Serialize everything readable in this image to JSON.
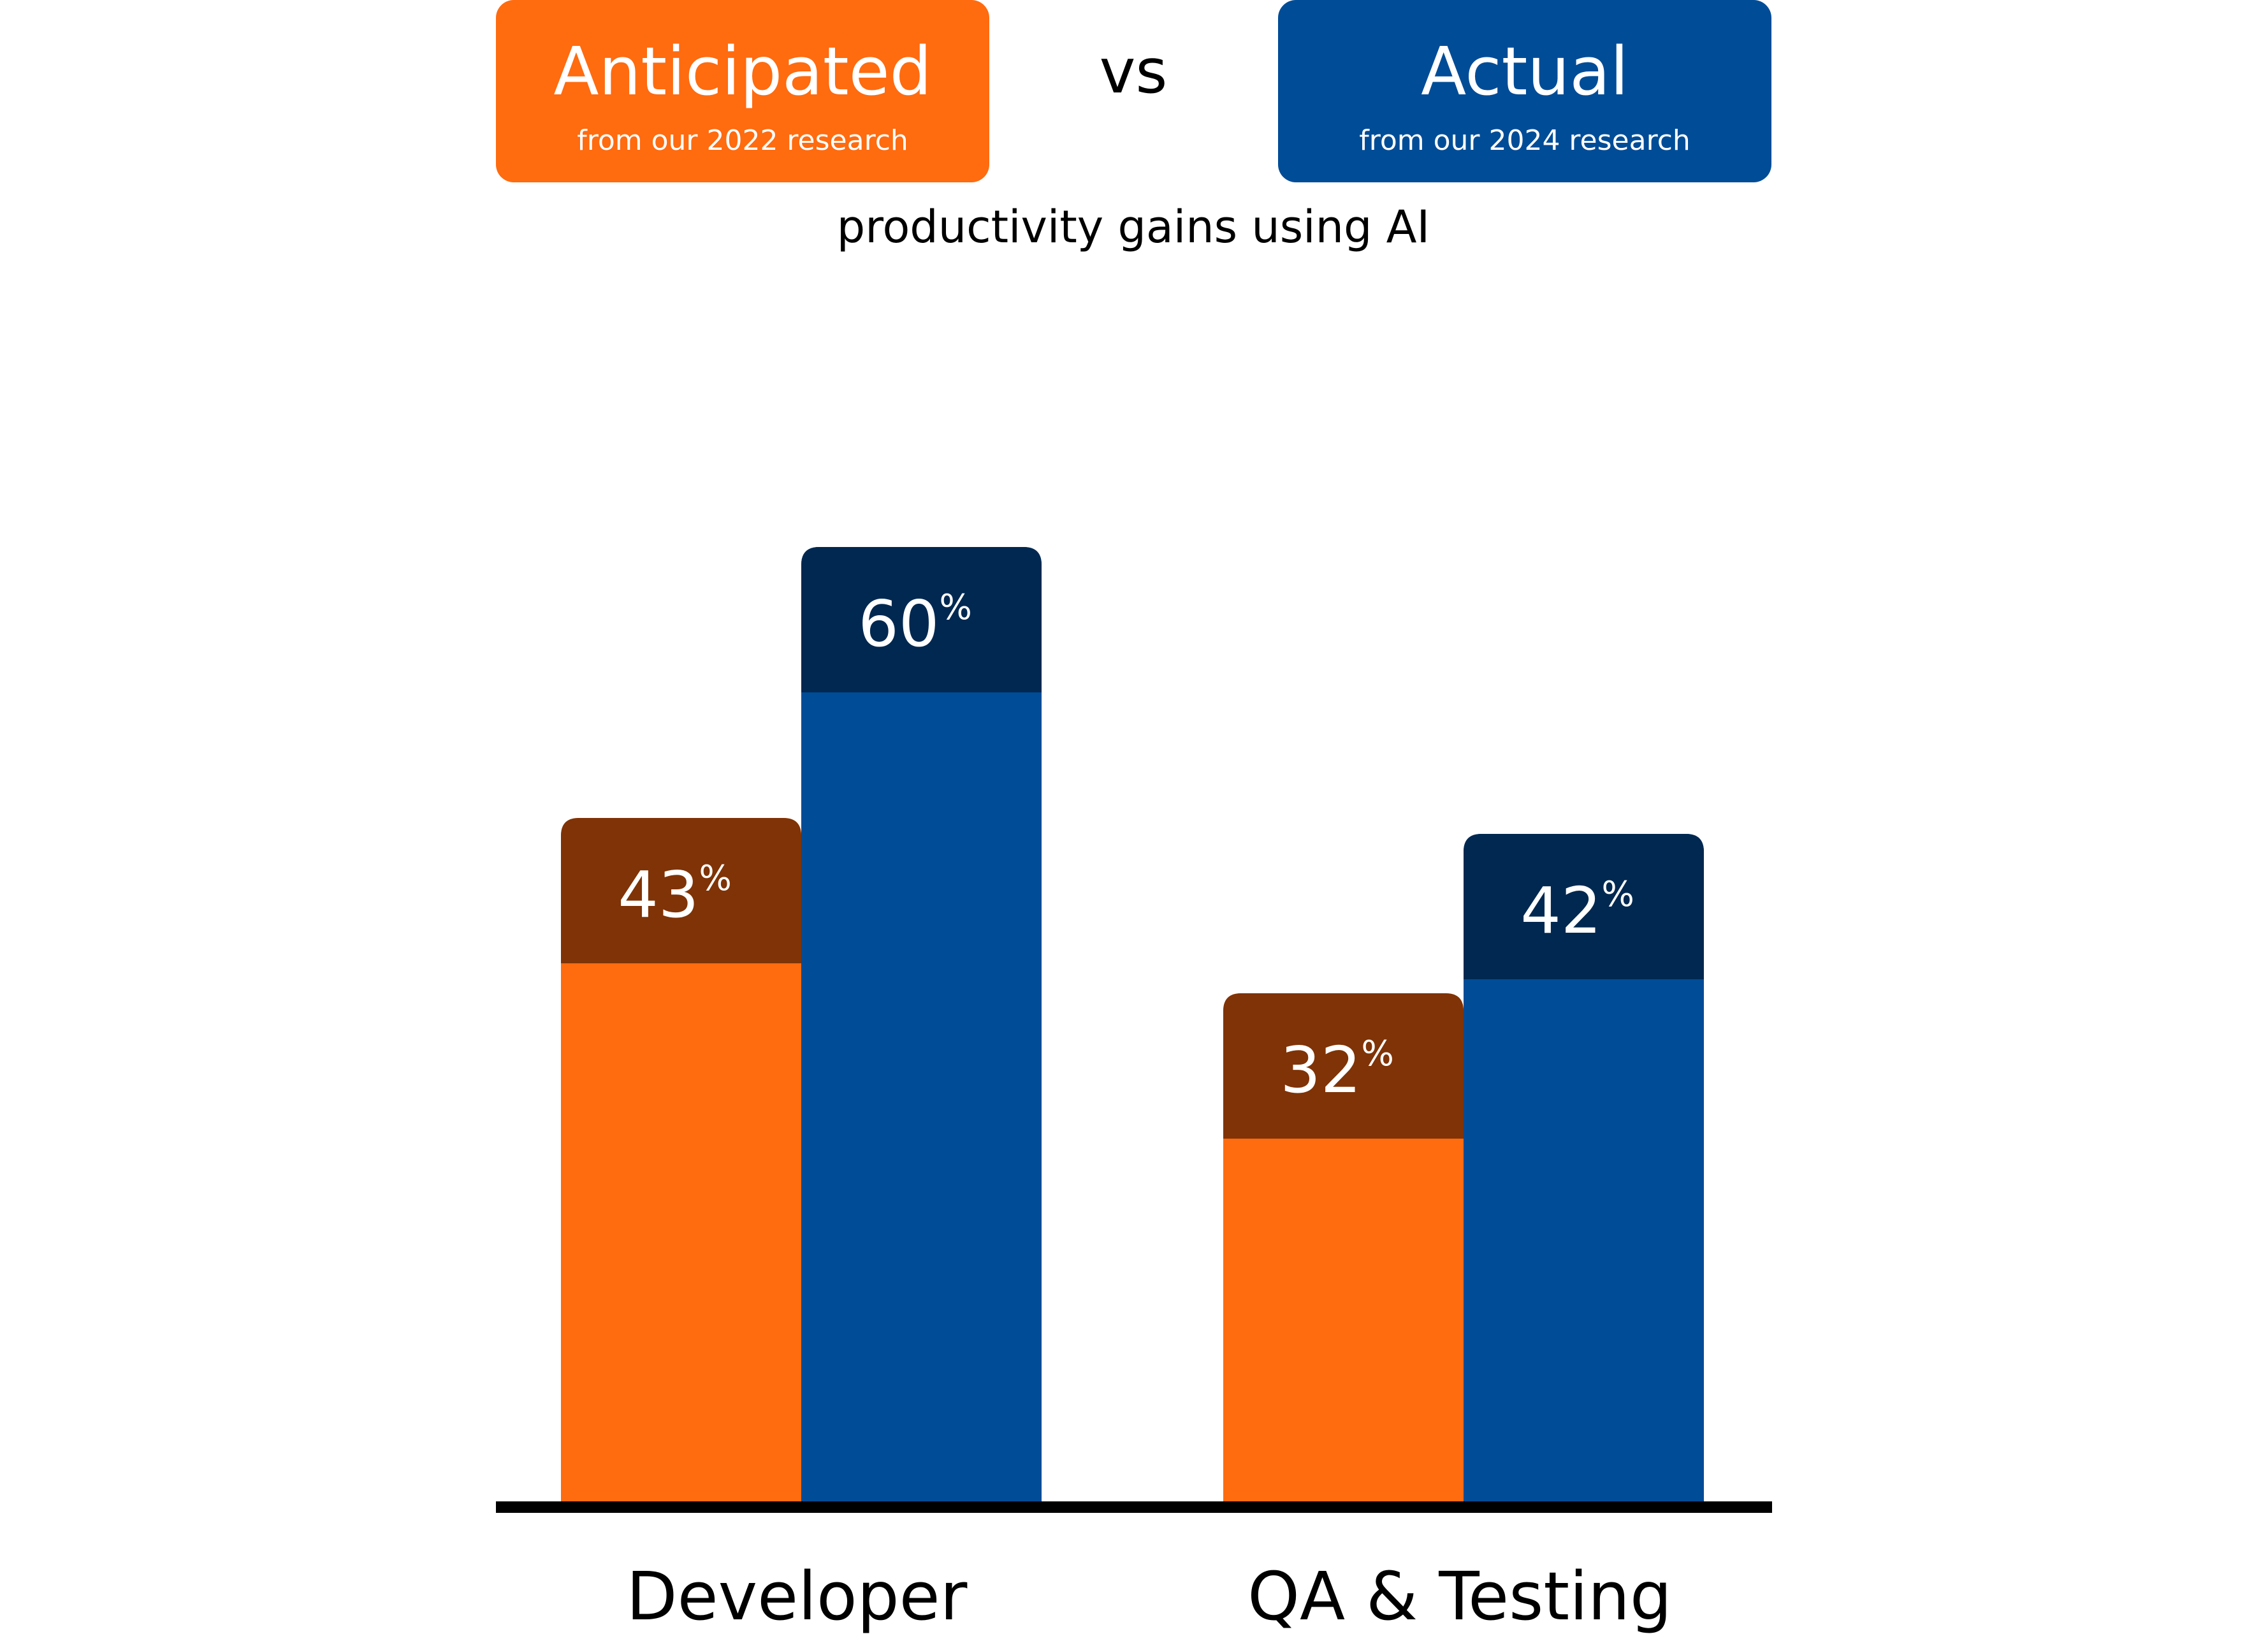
{
  "header": {
    "vs_label": "vs",
    "subtitle": "productivity gains using AI"
  },
  "chart_data": {
    "type": "bar",
    "title": "productivity gains using AI",
    "categories": [
      "Developer",
      "QA & Testing"
    ],
    "series": [
      {
        "name": "Anticipated",
        "note": "from our 2022 research",
        "values": [
          43,
          32
        ],
        "labels": [
          "43",
          "32"
        ],
        "color": "#ff6b0f",
        "cap_color": "#7f3306"
      },
      {
        "name": "Actual",
        "note": "from our 2024 research",
        "values": [
          60,
          42
        ],
        "labels": [
          "60",
          "42"
        ],
        "color": "#004c97",
        "cap_color": "#002850"
      }
    ],
    "unit": "%",
    "ylim": [
      0,
      100
    ],
    "grid": false,
    "legend": "top",
    "xlabel": "",
    "ylabel": ""
  }
}
